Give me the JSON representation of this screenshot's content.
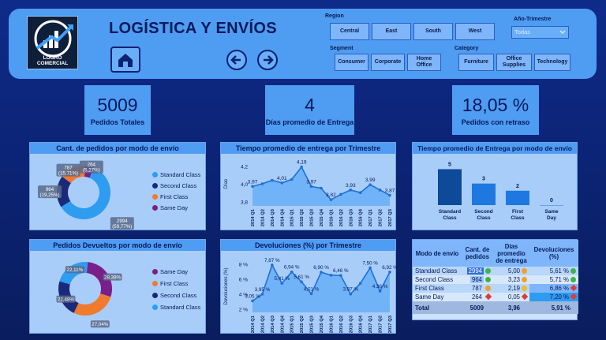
{
  "header": {
    "title": "LOGÍSTICA Y ENVÍOS",
    "logo_text": "LOGRO COMERCIAL",
    "region_label": "Region",
    "regions": [
      "Central",
      "East",
      "South",
      "West"
    ],
    "segment_label": "Segment",
    "segments": [
      "Consumer",
      "Corporate",
      "Home Office"
    ],
    "category_label": "Category",
    "categories": [
      "Furniture",
      "Office Supplies",
      "Technology"
    ],
    "year_label": "Año-Trimestre",
    "year_value": "Todas"
  },
  "kpis": {
    "total_orders": "5009",
    "total_orders_label": "Pedidos Totales",
    "avg_days": "4",
    "avg_days_label": "Días promedio de Entrega",
    "late_pct": "18,05 %",
    "late_pct_label": "Pedidos con retraso"
  },
  "colors": {
    "standard": "#2e9cf0",
    "second": "#1a2a7a",
    "first": "#f07a2e",
    "same": "#7a1e8a"
  },
  "donut1": {
    "title": "Cant. de pedidos por modo de envío",
    "legend": [
      "Standard Class",
      "Second Class",
      "First Class",
      "Same Day"
    ],
    "slices": [
      {
        "name": "Standard Class",
        "value": 2994,
        "label": "2994 (59,77%)"
      },
      {
        "name": "Second Class",
        "value": 964,
        "label": "964 (19,25%)"
      },
      {
        "name": "First Class",
        "value": 787,
        "label": "787 (15,71%)"
      },
      {
        "name": "Same Day",
        "value": 264,
        "label": "264 (5,27%)"
      }
    ]
  },
  "donut2": {
    "title": "Pedidos Devueltos por modo de envío",
    "legend": [
      "Same Day",
      "First Class",
      "Second Class",
      "Standard Class"
    ],
    "slices": [
      {
        "name": "Standard Class",
        "value": 22.11,
        "label": "22,11%"
      },
      {
        "name": "Same Day",
        "value": 28.38,
        "label": "28,38%"
      },
      {
        "name": "First Class",
        "value": 27.04,
        "label": "27,04%"
      },
      {
        "name": "Second Class",
        "value": 22.48,
        "label": "22,48%"
      }
    ]
  },
  "chart_data": [
    {
      "type": "area",
      "title": "Tiempo promedio de entrega por Trimestre",
      "ylabel": "Días",
      "x": [
        "2014 Q1",
        "2014 Q2",
        "2014 Q3",
        "2014 Q4",
        "2015 Q1",
        "2015 Q2",
        "2015 Q3",
        "2015 Q4",
        "2016 Q1",
        "2016 Q2",
        "2016 Q3",
        "2016 Q4",
        "2017 Q1",
        "2017 Q2",
        "2017 Q3"
      ],
      "values": [
        3.97,
        4.0,
        4.04,
        4.01,
        4.05,
        4.19,
        3.97,
        3.95,
        3.82,
        3.88,
        3.93,
        3.9,
        3.99,
        3.93,
        3.87
      ],
      "labels": {
        "0": "3,97",
        "3": "4,01",
        "5": "4,19",
        "6": "3,97",
        "8": "3,82",
        "10": "3,93",
        "12": "3,99",
        "14": "3,87"
      },
      "yticks": [
        "4,2",
        "4,0",
        "3,8"
      ],
      "ylim": [
        3.75,
        4.25
      ]
    },
    {
      "type": "area",
      "title": "Devoluciones (%) por Trimestre",
      "ylabel": "Devoluciones (%)",
      "x": [
        "2014 Q1",
        "2014 Q2",
        "2014 Q3",
        "2014 Q4",
        "2015 Q1",
        "2015 Q2",
        "2015 Q3",
        "2015 Q4",
        "2016 Q1",
        "2016 Q2",
        "2016 Q3",
        "2016 Q4",
        "2017 Q1",
        "2017 Q2",
        "2017 Q3"
      ],
      "values": [
        3.05,
        3.95,
        7.87,
        5.41,
        6.94,
        5.61,
        4.01,
        6.9,
        6.5,
        6.46,
        3.97,
        5.4,
        7.5,
        4.36,
        6.92
      ],
      "labels": {
        "0": "3,05 %",
        "1": "3,95 %",
        "2": "7,87 %",
        "3": "5,41 %",
        "4": "6,94 %",
        "5": "5,61 %",
        "6": "4,01 %",
        "7": "6,90 %",
        "9": "6,46 %",
        "10": "3,97 %",
        "12": "7,50 %",
        "13": "4,36 %",
        "14": "6,92 %"
      },
      "yticks": [
        "8 %",
        "6 %",
        "4 %",
        "2 %"
      ],
      "ylim": [
        1.5,
        8.5
      ]
    },
    {
      "type": "bar",
      "title": "Tiempo promedio de Entrega por modo de envío",
      "categories": [
        "Standard Class",
        "Second Class",
        "First Class",
        "Same Day"
      ],
      "values": [
        5,
        3,
        2,
        0
      ],
      "labels": [
        "5",
        "3",
        "2",
        "0"
      ]
    }
  ],
  "table": {
    "headers": [
      "Modo de envío",
      "Cant. de pedidos",
      "Días promedio de entrega",
      "Devoluciones (%)"
    ],
    "rows": [
      {
        "mode": "Standard Class",
        "count": "2994",
        "days": "5,00",
        "ret": "5,61 %",
        "ind1": "green",
        "ind2": "orange",
        "ind3": "green"
      },
      {
        "mode": "Second Class",
        "count": "964",
        "days": "3,23",
        "ret": "5,71 %",
        "ind1": "green",
        "ind2": "orange",
        "ind3": "green"
      },
      {
        "mode": "First Class",
        "count": "787",
        "days": "2,19",
        "ret": "6,86 %",
        "ind1": "orange",
        "ind2": "yellow",
        "ind3": "red"
      },
      {
        "mode": "Same Day",
        "count": "264",
        "days": "0,05",
        "ret": "7,20 %",
        "ind1": "red",
        "ind2": "red",
        "ind3": "red"
      }
    ],
    "total": {
      "mode": "Total",
      "count": "5009",
      "days": "3,96",
      "ret": "5,91 %"
    }
  }
}
